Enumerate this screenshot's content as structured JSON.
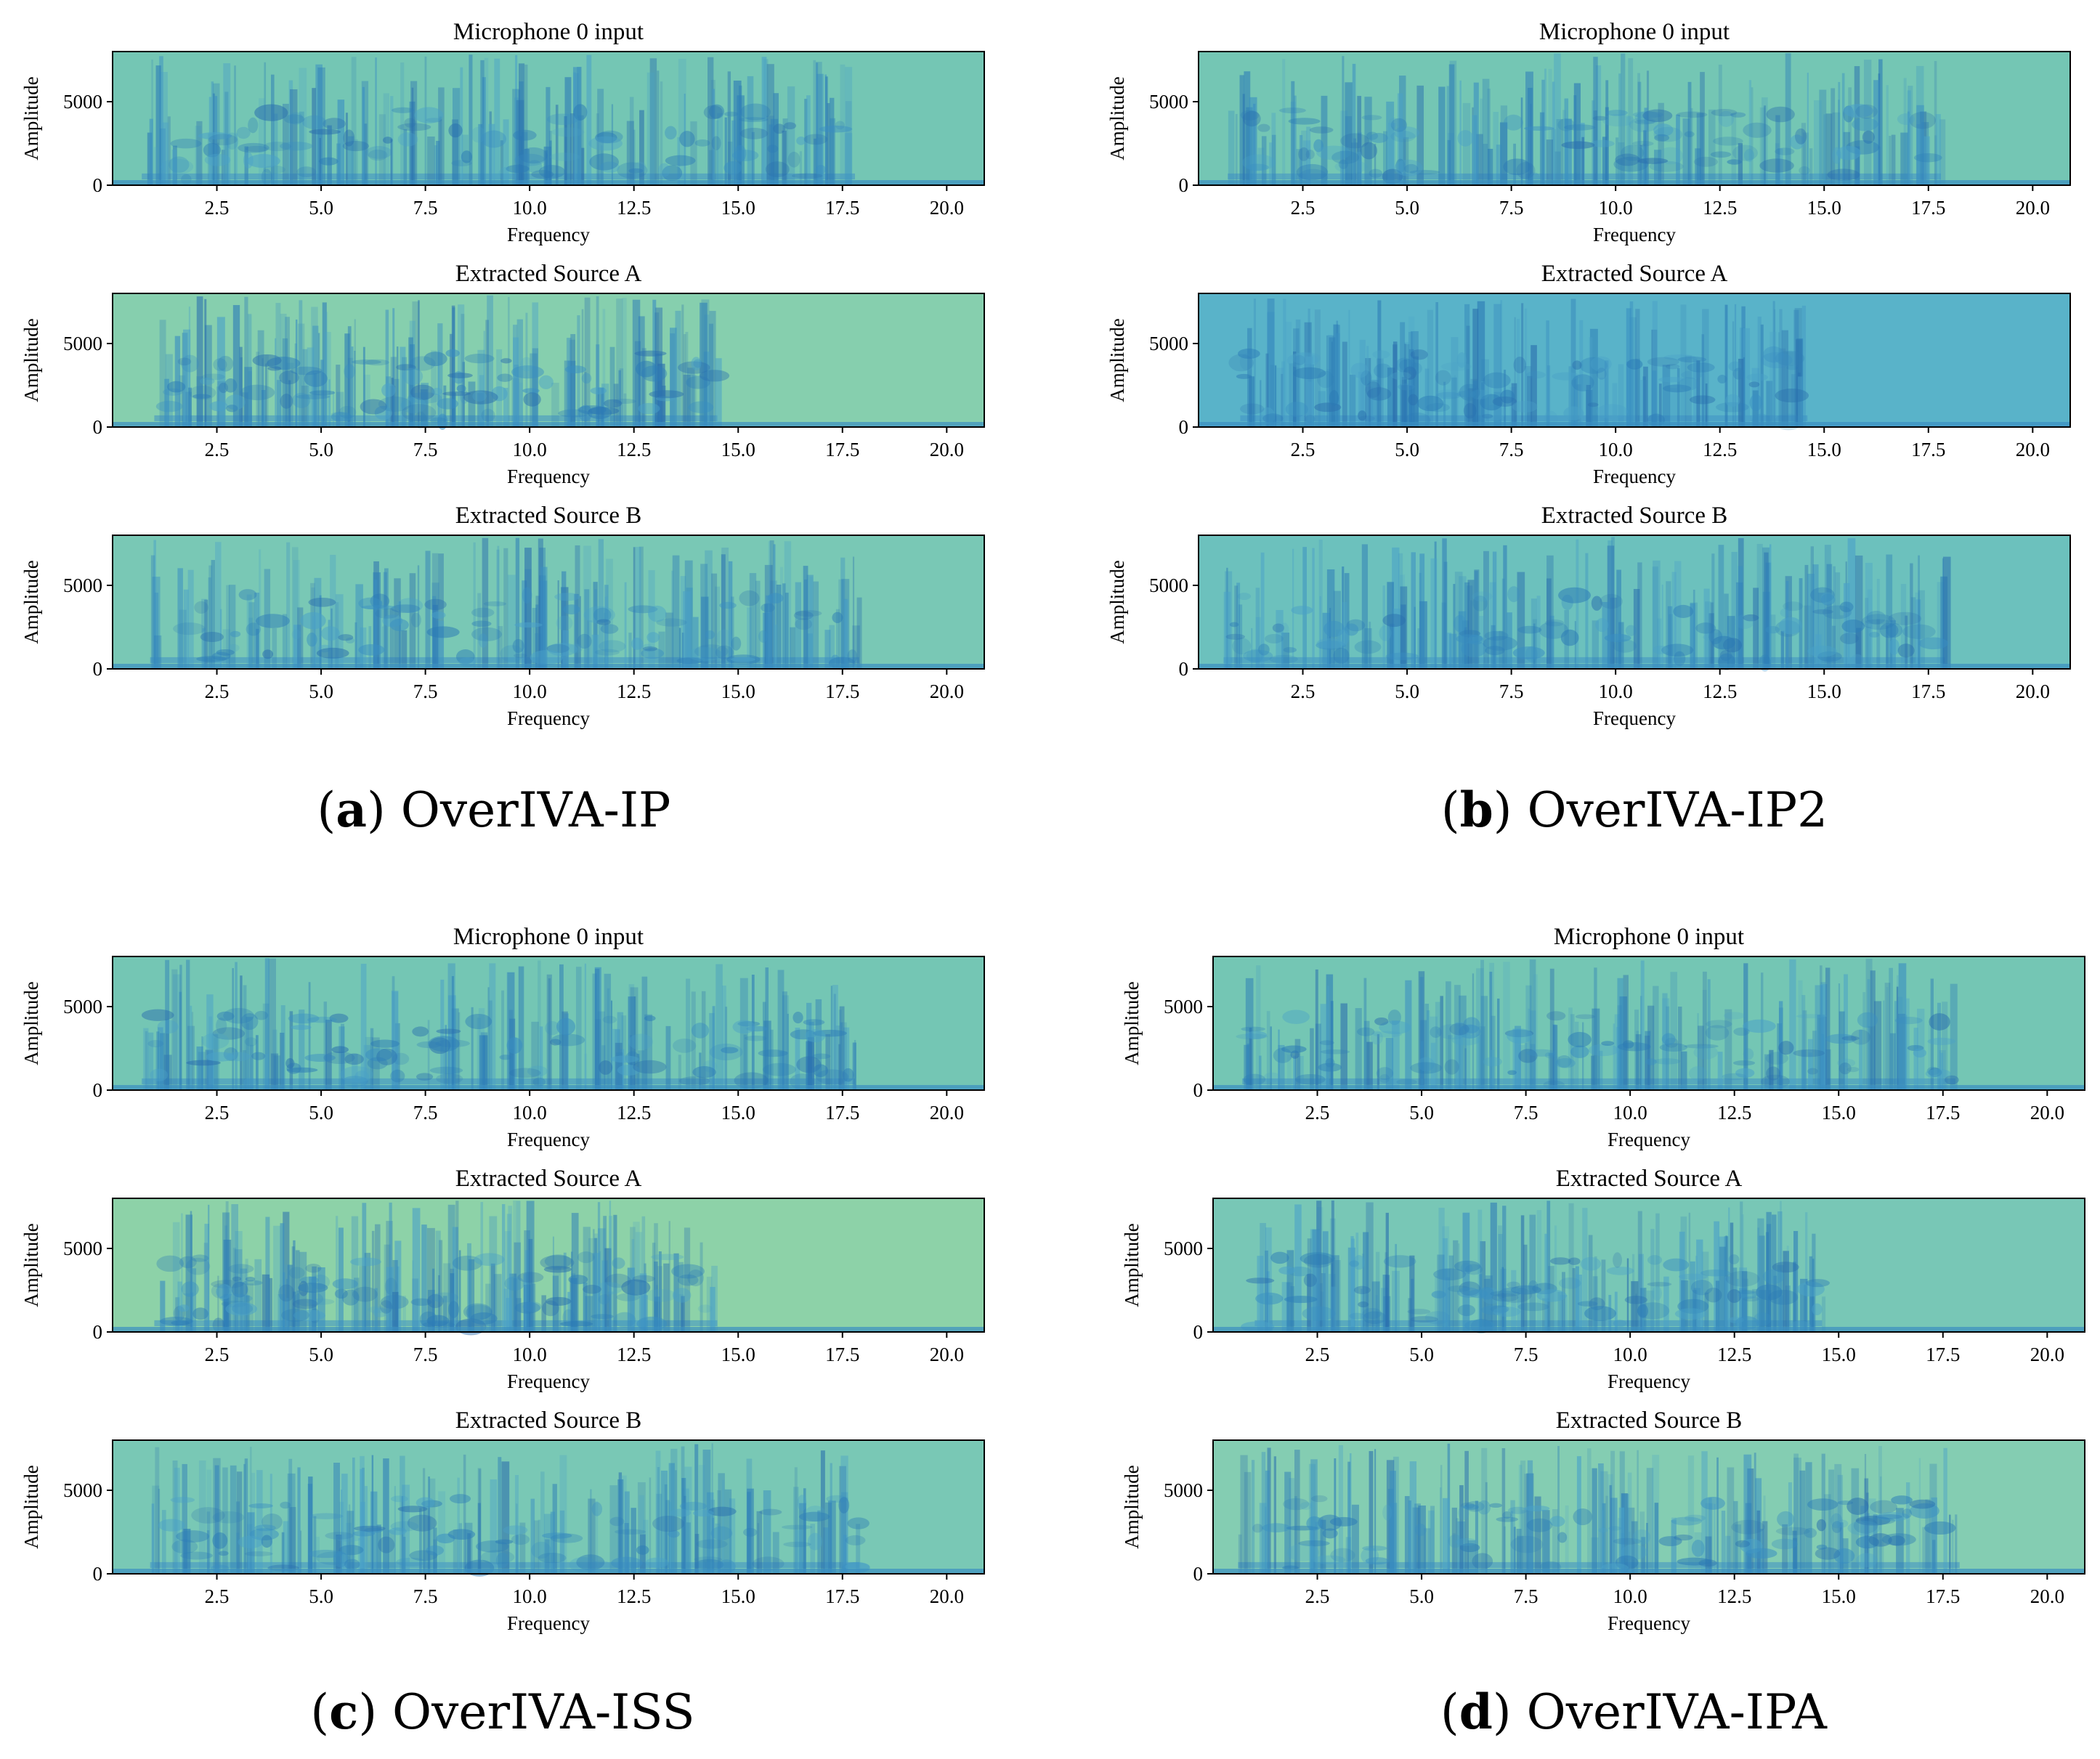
{
  "chart_data": [
    {
      "panel": "a",
      "caption": {
        "letter": "a",
        "method": "OverIVA-IP"
      },
      "subplots": [
        {
          "type": "heatmap",
          "title": "Microphone 0 input",
          "xlabel": "Frequency",
          "ylabel": "Amplitude",
          "xlim": [
            0,
            20.9
          ],
          "ylim": [
            0,
            8000
          ],
          "xticks": [
            2.5,
            5.0,
            7.5,
            10.0,
            12.5,
            15.0,
            17.5,
            20.0
          ],
          "yticks": [
            0,
            5000
          ],
          "xtick_labels": [
            "2.5",
            "5.0",
            "7.5",
            "10.0",
            "12.5",
            "15.0",
            "17.5",
            "20.0"
          ],
          "ytick_labels": [
            "0",
            "5000"
          ],
          "colormap": "GnBu",
          "background": "#74c6b4",
          "speech_extent": [
            0.7,
            17.8
          ]
        },
        {
          "type": "heatmap",
          "title": "Extracted Source A",
          "xlabel": "Frequency",
          "ylabel": "Amplitude",
          "xlim": [
            0,
            20.9
          ],
          "ylim": [
            0,
            8000
          ],
          "xticks": [
            2.5,
            5.0,
            7.5,
            10.0,
            12.5,
            15.0,
            17.5,
            20.0
          ],
          "yticks": [
            0,
            5000
          ],
          "xtick_labels": [
            "2.5",
            "5.0",
            "7.5",
            "10.0",
            "12.5",
            "15.0",
            "17.5",
            "20.0"
          ],
          "ytick_labels": [
            "0",
            "5000"
          ],
          "colormap": "GnBu",
          "background": "#86cfae",
          "speech_extent": [
            1.0,
            14.5
          ]
        },
        {
          "type": "heatmap",
          "title": "Extracted Source B",
          "xlabel": "Frequency",
          "ylabel": "Amplitude",
          "xlim": [
            0,
            20.9
          ],
          "ylim": [
            0,
            8000
          ],
          "xticks": [
            2.5,
            5.0,
            7.5,
            10.0,
            12.5,
            15.0,
            17.5,
            20.0
          ],
          "yticks": [
            0,
            5000
          ],
          "xtick_labels": [
            "2.5",
            "5.0",
            "7.5",
            "10.0",
            "12.5",
            "15.0",
            "17.5",
            "20.0"
          ],
          "ytick_labels": [
            "0",
            "5000"
          ],
          "colormap": "GnBu",
          "background": "#79c8b5",
          "speech_extent": [
            0.9,
            17.9
          ]
        }
      ]
    },
    {
      "panel": "b",
      "caption": {
        "letter": "b",
        "method": "OverIVA-IP2"
      },
      "subplots": [
        {
          "type": "heatmap",
          "title": "Microphone 0 input",
          "xlabel": "Frequency",
          "ylabel": "Amplitude",
          "xlim": [
            0,
            20.9
          ],
          "ylim": [
            0,
            8000
          ],
          "xticks": [
            2.5,
            5.0,
            7.5,
            10.0,
            12.5,
            15.0,
            17.5,
            20.0
          ],
          "yticks": [
            0,
            5000
          ],
          "xtick_labels": [
            "2.5",
            "5.0",
            "7.5",
            "10.0",
            "12.5",
            "15.0",
            "17.5",
            "20.0"
          ],
          "ytick_labels": [
            "0",
            "5000"
          ],
          "colormap": "GnBu",
          "background": "#74c6b4",
          "speech_extent": [
            0.7,
            17.8
          ]
        },
        {
          "type": "heatmap",
          "title": "Extracted Source A",
          "xlabel": "Frequency",
          "ylabel": "Amplitude",
          "xlim": [
            0,
            20.9
          ],
          "ylim": [
            0,
            8000
          ],
          "xticks": [
            2.5,
            5.0,
            7.5,
            10.0,
            12.5,
            15.0,
            17.5,
            20.0
          ],
          "yticks": [
            0,
            5000
          ],
          "xtick_labels": [
            "2.5",
            "5.0",
            "7.5",
            "10.0",
            "12.5",
            "15.0",
            "17.5",
            "20.0"
          ],
          "ytick_labels": [
            "0",
            "5000"
          ],
          "colormap": "GnBu",
          "background": "#59b3c9",
          "speech_extent": [
            1.0,
            14.6
          ]
        },
        {
          "type": "heatmap",
          "title": "Extracted Source B",
          "xlabel": "Frequency",
          "ylabel": "Amplitude",
          "xlim": [
            0,
            20.9
          ],
          "ylim": [
            0,
            8000
          ],
          "xticks": [
            2.5,
            5.0,
            7.5,
            10.0,
            12.5,
            15.0,
            17.5,
            20.0
          ],
          "yticks": [
            0,
            5000
          ],
          "xtick_labels": [
            "2.5",
            "5.0",
            "7.5",
            "10.0",
            "12.5",
            "15.0",
            "17.5",
            "20.0"
          ],
          "ytick_labels": [
            "0",
            "5000"
          ],
          "colormap": "GnBu",
          "background": "#6cc1bd",
          "speech_extent": [
            0.6,
            17.9
          ]
        }
      ]
    },
    {
      "panel": "c",
      "caption": {
        "letter": "c",
        "method": "OverIVA-ISS"
      },
      "subplots": [
        {
          "type": "heatmap",
          "title": "Microphone 0 input",
          "xlabel": "Frequency",
          "ylabel": "Amplitude",
          "xlim": [
            0,
            20.9
          ],
          "ylim": [
            0,
            8000
          ],
          "xticks": [
            2.5,
            5.0,
            7.5,
            10.0,
            12.5,
            15.0,
            17.5,
            20.0
          ],
          "yticks": [
            0,
            5000
          ],
          "xtick_labels": [
            "2.5",
            "5.0",
            "7.5",
            "10.0",
            "12.5",
            "15.0",
            "17.5",
            "20.0"
          ],
          "ytick_labels": [
            "0",
            "5000"
          ],
          "colormap": "GnBu",
          "background": "#74c6b4",
          "speech_extent": [
            0.7,
            17.8
          ]
        },
        {
          "type": "heatmap",
          "title": "Extracted Source A",
          "xlabel": "Frequency",
          "ylabel": "Amplitude",
          "xlim": [
            0,
            20.9
          ],
          "ylim": [
            0,
            8000
          ],
          "xticks": [
            2.5,
            5.0,
            7.5,
            10.0,
            12.5,
            15.0,
            17.5,
            20.0
          ],
          "yticks": [
            0,
            5000
          ],
          "xtick_labels": [
            "2.5",
            "5.0",
            "7.5",
            "10.0",
            "12.5",
            "15.0",
            "17.5",
            "20.0"
          ],
          "ytick_labels": [
            "0",
            "5000"
          ],
          "colormap": "GnBu",
          "background": "#8dd2a8",
          "speech_extent": [
            1.0,
            14.5
          ]
        },
        {
          "type": "heatmap",
          "title": "Extracted Source B",
          "xlabel": "Frequency",
          "ylabel": "Amplitude",
          "xlim": [
            0,
            20.9
          ],
          "ylim": [
            0,
            8000
          ],
          "xticks": [
            2.5,
            5.0,
            7.5,
            10.0,
            12.5,
            15.0,
            17.5,
            20.0
          ],
          "yticks": [
            0,
            5000
          ],
          "xtick_labels": [
            "2.5",
            "5.0",
            "7.5",
            "10.0",
            "12.5",
            "15.0",
            "17.5",
            "20.0"
          ],
          "ytick_labels": [
            "0",
            "5000"
          ],
          "colormap": "GnBu",
          "background": "#79c8b5",
          "speech_extent": [
            0.9,
            17.9
          ]
        }
      ]
    },
    {
      "panel": "d",
      "caption": {
        "letter": "d",
        "method": "OverIVA-IPA"
      },
      "subplots": [
        {
          "type": "heatmap",
          "title": "Microphone 0 input",
          "xlabel": "Frequency",
          "ylabel": "Amplitude",
          "xlim": [
            0,
            20.9
          ],
          "ylim": [
            0,
            8000
          ],
          "xticks": [
            2.5,
            5.0,
            7.5,
            10.0,
            12.5,
            15.0,
            17.5,
            20.0
          ],
          "yticks": [
            0,
            5000
          ],
          "xtick_labels": [
            "2.5",
            "5.0",
            "7.5",
            "10.0",
            "12.5",
            "15.0",
            "17.5",
            "20.0"
          ],
          "ytick_labels": [
            "0",
            "5000"
          ],
          "colormap": "GnBu",
          "background": "#74c6b4",
          "speech_extent": [
            0.7,
            17.8
          ]
        },
        {
          "type": "heatmap",
          "title": "Extracted Source A",
          "xlabel": "Frequency",
          "ylabel": "Amplitude",
          "xlim": [
            0,
            20.9
          ],
          "ylim": [
            0,
            8000
          ],
          "xticks": [
            2.5,
            5.0,
            7.5,
            10.0,
            12.5,
            15.0,
            17.5,
            20.0
          ],
          "yticks": [
            0,
            5000
          ],
          "xtick_labels": [
            "2.5",
            "5.0",
            "7.5",
            "10.0",
            "12.5",
            "15.0",
            "17.5",
            "20.0"
          ],
          "ytick_labels": [
            "0",
            "5000"
          ],
          "colormap": "GnBu",
          "background": "#78c7b6",
          "speech_extent": [
            1.0,
            14.6
          ]
        },
        {
          "type": "heatmap",
          "title": "Extracted Source B",
          "xlabel": "Frequency",
          "ylabel": "Amplitude",
          "xlim": [
            0,
            20.9
          ],
          "ylim": [
            0,
            8000
          ],
          "xticks": [
            2.5,
            5.0,
            7.5,
            10.0,
            12.5,
            15.0,
            17.5,
            20.0
          ],
          "yticks": [
            0,
            5000
          ],
          "xtick_labels": [
            "2.5",
            "5.0",
            "7.5",
            "10.0",
            "12.5",
            "15.0",
            "17.5",
            "20.0"
          ],
          "ytick_labels": [
            "0",
            "5000"
          ],
          "colormap": "GnBu",
          "background": "#84cdb2",
          "speech_extent": [
            0.6,
            17.9
          ]
        }
      ]
    }
  ]
}
